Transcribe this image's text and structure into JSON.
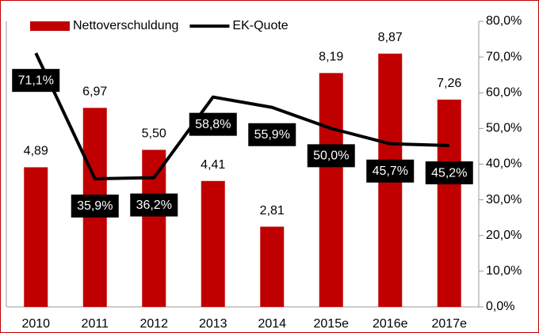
{
  "chart_data": {
    "type": "bar-line",
    "categories": [
      "2010",
      "2011",
      "2012",
      "2013",
      "2014",
      "2015e",
      "2016e",
      "2017e"
    ],
    "series": [
      {
        "name": "Nettoverschuldung",
        "type": "bar",
        "color": "#c00000",
        "values": [
          4.89,
          6.97,
          5.5,
          4.41,
          2.81,
          8.19,
          8.87,
          7.26
        ],
        "value_labels": [
          "4,89",
          "6,97",
          "5,50",
          "4,41",
          "2,81",
          "8,19",
          "8,87",
          "7,26"
        ]
      },
      {
        "name": "EK-Quote",
        "type": "line",
        "color": "#000000",
        "axis": "y2",
        "values": [
          71.1,
          35.9,
          36.2,
          58.8,
          55.9,
          50.0,
          45.7,
          45.2
        ],
        "value_labels": [
          "71,1%",
          "35,9%",
          "36,2%",
          "58,8%",
          "55,9%",
          "50,0%",
          "45,7%",
          "45,2%"
        ]
      }
    ],
    "ylim": [
      0,
      10
    ],
    "y2lim": [
      0,
      80
    ],
    "y2ticks": [
      {
        "value": 0,
        "label": "0,0%"
      },
      {
        "value": 10,
        "label": "10,0%"
      },
      {
        "value": 20,
        "label": "20,0%"
      },
      {
        "value": 30,
        "label": "30,0%"
      },
      {
        "value": 40,
        "label": "40,0%"
      },
      {
        "value": 50,
        "label": "50,0%"
      },
      {
        "value": 60,
        "label": "60,0%"
      },
      {
        "value": 70,
        "label": "70,0%"
      },
      {
        "value": 80,
        "label": "80,0%"
      }
    ],
    "legend": "top"
  }
}
